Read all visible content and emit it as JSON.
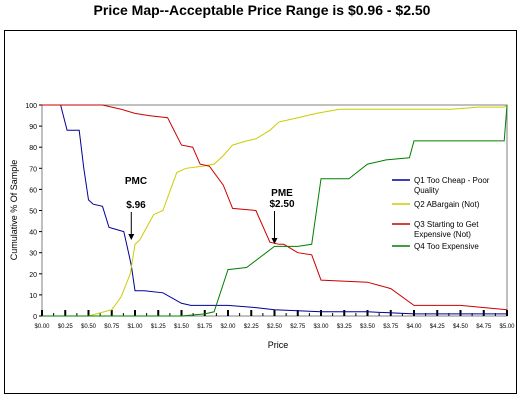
{
  "chart_data": {
    "type": "line",
    "title": "Price Map--Acceptable Price Range is $0.96 - $2.50",
    "xlabel": "Price",
    "ylabel": "Cumulative % Of Sample",
    "xlim": [
      0,
      5
    ],
    "ylim": [
      0,
      100
    ],
    "x_ticks": [
      0,
      0.25,
      0.5,
      0.75,
      1,
      1.25,
      1.5,
      1.75,
      2,
      2.25,
      2.5,
      2.75,
      3,
      3.25,
      3.5,
      3.75,
      4,
      4.25,
      4.5,
      4.75,
      5
    ],
    "x_tick_labels": [
      "$0.00",
      "$0.25",
      "$0.50",
      "$0.75",
      "$1.00",
      "$1.25",
      "$1.50",
      "$1.75",
      "$2.00",
      "$2.25",
      "$2.50",
      "$2.75",
      "$3.00",
      "$3.25",
      "$3.50",
      "$3.75",
      "$4.00",
      "$4.25",
      "$4.50",
      "$4.75",
      "$5.00"
    ],
    "y_ticks": [
      0,
      10,
      20,
      30,
      40,
      50,
      60,
      70,
      80,
      90,
      100
    ],
    "grid": false,
    "legend_position": "right",
    "series": [
      {
        "name": "Q1 Too Cheap - Poor Quality",
        "color": "#000099",
        "x": [
          0,
          0.2,
          0.27,
          0.4,
          0.45,
          0.5,
          0.55,
          0.65,
          0.72,
          0.8,
          0.88,
          0.92,
          0.96,
          1.0,
          1.1,
          1.3,
          1.5,
          1.6,
          1.75,
          2.0,
          2.3,
          2.5,
          3.0,
          3.5,
          4.0,
          4.5,
          5.0
        ],
        "y": [
          100,
          100,
          88,
          88,
          70,
          55,
          53,
          52,
          42,
          41,
          40,
          32,
          24,
          12,
          12,
          11,
          6,
          5,
          5,
          5,
          4,
          3,
          2,
          2,
          1,
          1,
          1
        ]
      },
      {
        "name": "Q2 ABargain (Not)",
        "color": "#cccc00",
        "x": [
          0,
          0.5,
          0.75,
          0.85,
          0.95,
          1.0,
          1.05,
          1.2,
          1.3,
          1.45,
          1.55,
          1.72,
          1.85,
          1.95,
          2.05,
          2.2,
          2.3,
          2.45,
          2.55,
          2.75,
          2.95,
          3.2,
          3.5,
          3.8,
          4.0,
          4.4,
          4.7,
          4.97,
          5.0
        ],
        "y": [
          0,
          0,
          3,
          9,
          20,
          34,
          36,
          48,
          50,
          68,
          70,
          71,
          72,
          76,
          81,
          83,
          84,
          88,
          92,
          94,
          96,
          98,
          98,
          98,
          98,
          98,
          99,
          99,
          100
        ]
      },
      {
        "name": "Q3 Starting to Get Expensive (Not)",
        "color": "#cc0000",
        "x": [
          0,
          0.5,
          0.65,
          0.85,
          1.0,
          1.15,
          1.35,
          1.5,
          1.62,
          1.7,
          1.8,
          1.95,
          2.05,
          2.3,
          2.45,
          2.55,
          2.6,
          2.75,
          2.9,
          3.0,
          3.5,
          3.75,
          4.0,
          4.5,
          5.0
        ],
        "y": [
          100,
          100,
          100,
          98,
          96,
          95,
          94,
          81,
          80,
          72,
          71,
          62,
          51,
          50,
          35,
          34,
          34,
          30,
          29,
          17,
          16,
          13,
          5,
          5,
          3
        ]
      },
      {
        "name": "Q4 Too Expensive",
        "color": "#008000",
        "x": [
          0,
          0.5,
          1.0,
          1.5,
          1.75,
          1.85,
          2.0,
          2.2,
          2.5,
          2.75,
          2.9,
          3.0,
          3.3,
          3.5,
          3.7,
          3.95,
          4.0,
          4.5,
          4.8,
          4.97,
          5.0
        ],
        "y": [
          0,
          0,
          0,
          0,
          1,
          2,
          22,
          23,
          33,
          33,
          34,
          65,
          65,
          72,
          74,
          75,
          83,
          83,
          83,
          83,
          100
        ]
      }
    ],
    "annotations": [
      {
        "label": "PMC",
        "value_label": "$.96",
        "x": 0.96,
        "y": 34
      },
      {
        "label": "PME",
        "value_label": "$2.50",
        "x": 2.5,
        "y": 34
      }
    ]
  }
}
